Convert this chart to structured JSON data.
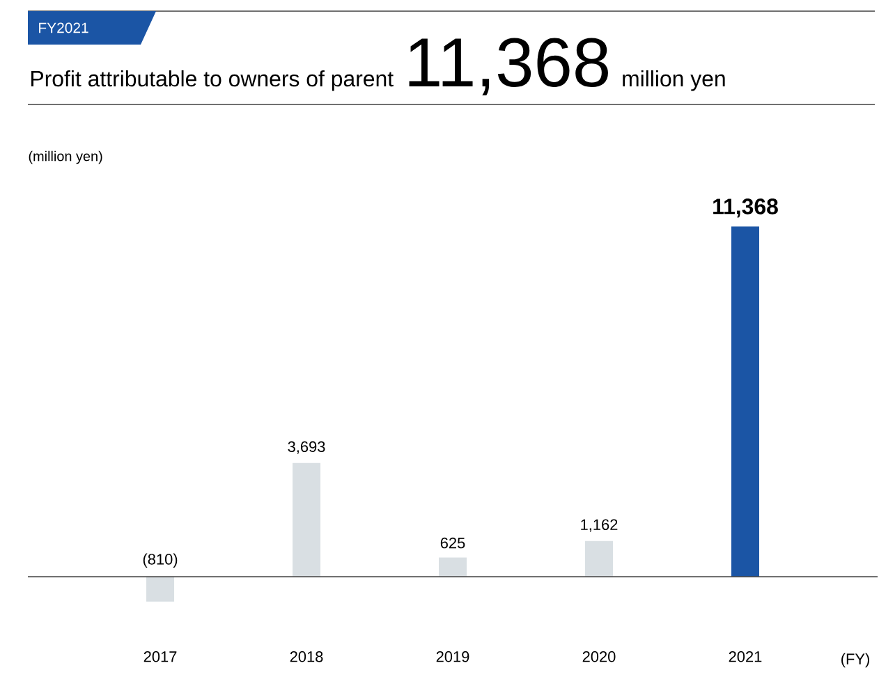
{
  "chart_data": {
    "type": "bar",
    "title": "Profit attributable to owners of parent",
    "subtitle": "FY2021",
    "annotations": [
      "11,368",
      "million yen"
    ],
    "ylabel": "(million yen)",
    "xlabel": "(FY)",
    "categories": [
      "2017",
      "2018",
      "2019",
      "2020",
      "2021"
    ],
    "values": [
      -810,
      3693,
      625,
      1162,
      11368
    ],
    "colors": [
      "#d9dfe3",
      "#d9dfe3",
      "#d9dfe3",
      "#d9dfe3",
      "#1b55a5"
    ],
    "value_labels": [
      "(810)",
      "3,693",
      "625",
      "1,162",
      "11,368"
    ]
  }
}
